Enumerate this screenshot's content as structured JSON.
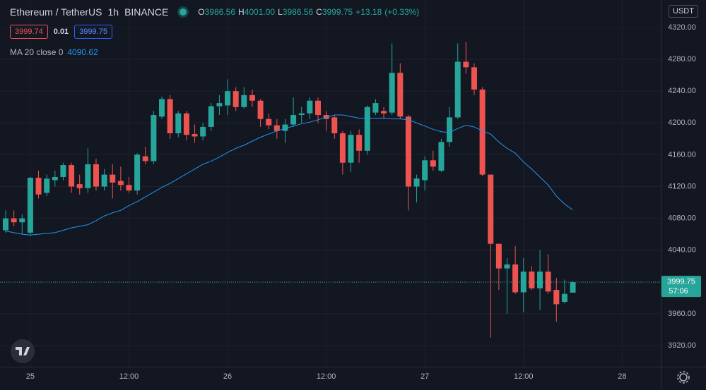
{
  "chart_data": {
    "type": "candlestick",
    "title": "Ethereum / TetherUS",
    "interval": "1h",
    "exchange": "BINANCE",
    "ohlc_legend": {
      "open_label": "O",
      "open": 3986.56,
      "high_label": "H",
      "high": {
        "value": 4001,
        "label": "4001.00"
      },
      "low_label": "L",
      "low": 3986.56,
      "close_label": "C",
      "close": 3999.75,
      "change": {
        "value": 13.18,
        "label": "+13.18"
      },
      "change_pct": {
        "value": 0.33,
        "label": "(+0.33%)"
      }
    },
    "sell": 3999.74,
    "spread": 0.01,
    "buy": 3999.75,
    "currency": "USDT",
    "last_price": 3999.75,
    "countdown": "57:06",
    "up_color": "#26a69a",
    "down_color": "#ef5350",
    "x": [
      -3,
      -2,
      -1,
      0,
      1,
      2,
      3,
      4,
      5,
      6,
      7,
      8,
      9,
      10,
      11,
      12,
      13,
      14,
      15,
      16,
      17,
      18,
      19,
      20,
      21,
      22,
      23,
      24,
      25,
      26,
      27,
      28,
      29,
      30,
      31,
      32,
      33,
      34,
      35,
      36,
      37,
      38,
      39,
      40,
      41,
      42,
      43,
      44,
      45,
      46,
      47,
      48,
      49,
      50,
      51,
      52,
      53,
      54,
      55,
      56,
      57,
      58,
      59,
      60,
      61,
      62,
      63,
      64,
      65,
      66
    ],
    "open": [
      4065,
      4080,
      4075,
      4062,
      4131,
      4112,
      4128,
      4132,
      4147,
      4123,
      4118,
      4148,
      4120,
      4135,
      4127,
      4122,
      4115,
      4158,
      4152,
      4208,
      4230,
      4187,
      4212,
      4186,
      4183,
      4195,
      4221,
      4222,
      4240,
      4220,
      4235,
      4228,
      4205,
      4197,
      4190,
      4198,
      4210,
      4212,
      4228,
      4210,
      4207,
      4187,
      4150,
      4185,
      4165,
      4213,
      4215,
      4213,
      4263,
      4208,
      4120,
      4128,
      4153,
      4140,
      4176,
      4207,
      4277,
      4270,
      4242,
      4135,
      4048,
      4017,
      4022,
      3987,
      4013,
      3992,
      4013,
      3990,
      3975,
      3986.56
    ],
    "high": [
      4090,
      4090,
      4085,
      4132,
      4140,
      4135,
      4140,
      4150,
      4150,
      4135,
      4168,
      4155,
      4142,
      4148,
      4145,
      4132,
      4162,
      4170,
      4215,
      4233,
      4235,
      4215,
      4215,
      4198,
      4200,
      4225,
      4235,
      4255,
      4245,
      4245,
      4242,
      4230,
      4212,
      4205,
      4205,
      4232,
      4220,
      4232,
      4232,
      4215,
      4210,
      4190,
      4190,
      4192,
      4222,
      4230,
      4220,
      4300,
      4275,
      4210,
      4135,
      4158,
      4165,
      4180,
      4220,
      4300,
      4302,
      4275,
      4245,
      4135,
      4048,
      4030,
      4045,
      4030,
      4020,
      4040,
      4035,
      4005,
      4003,
      4001
    ],
    "low": [
      4062,
      4070,
      4060,
      4058,
      4105,
      4108,
      4120,
      4128,
      4112,
      4110,
      4112,
      4115,
      4115,
      4105,
      4115,
      4112,
      4110,
      4148,
      4148,
      4205,
      4180,
      4182,
      4178,
      4175,
      4178,
      4190,
      4210,
      4210,
      4215,
      4218,
      4220,
      4195,
      4192,
      4180,
      4175,
      4195,
      4200,
      4205,
      4200,
      4190,
      4180,
      4135,
      4138,
      4150,
      4160,
      4210,
      4205,
      4210,
      4205,
      4090,
      4100,
      4115,
      4140,
      4138,
      4170,
      4205,
      4262,
      4235,
      4133,
      3930,
      3990,
      3960,
      3985,
      3962,
      3990,
      3965,
      3985,
      3950,
      3973,
      3986.56
    ],
    "close": [
      4080,
      4075,
      4080,
      4131,
      4110,
      4130,
      4132,
      4147,
      4120,
      4118,
      4148,
      4120,
      4135,
      4125,
      4122,
      4115,
      4160,
      4152,
      4210,
      4230,
      4187,
      4212,
      4185,
      4183,
      4195,
      4221,
      4225,
      4240,
      4220,
      4235,
      4228,
      4205,
      4197,
      4190,
      4198,
      4210,
      4212,
      4228,
      4210,
      4205,
      4187,
      4150,
      4185,
      4165,
      4220,
      4225,
      4212,
      4263,
      4208,
      4120,
      4130,
      4153,
      4145,
      4176,
      4207,
      4277,
      4270,
      4242,
      4135,
      4048,
      4017,
      4022,
      3987,
      4013,
      3992,
      4013,
      3988,
      3972,
      3985,
      3999.75
    ],
    "ma": {
      "name": "MA 20 close 0",
      "color": "#2196f3",
      "values": [
        4064,
        4062,
        4060,
        4059,
        4060,
        4061,
        4062,
        4065,
        4068,
        4070,
        4072,
        4077,
        4083,
        4087,
        4090,
        4096,
        4101,
        4107,
        4113,
        4119,
        4124,
        4130,
        4136,
        4142,
        4148,
        4152,
        4157,
        4163,
        4168,
        4172,
        4177,
        4182,
        4186,
        4190,
        4193,
        4196,
        4199,
        4201,
        4204,
        4207,
        4210,
        4210,
        4208,
        4206,
        4206,
        4206,
        4206,
        4205,
        4205,
        4204,
        4200,
        4196,
        4192,
        4189,
        4188,
        4193,
        4197,
        4195,
        4190,
        4186,
        4176,
        4168,
        4162,
        4151,
        4142,
        4132,
        4122,
        4108,
        4098,
        4090.62
      ]
    },
    "xlim": [
      -3.69,
      76.7
    ],
    "xticks": [
      {
        "value": 0,
        "label": "25"
      },
      {
        "value": 12,
        "label": "12:00"
      },
      {
        "value": 24,
        "label": "26"
      },
      {
        "value": 36,
        "label": "12:00"
      },
      {
        "value": 48,
        "label": "27"
      },
      {
        "value": 60,
        "label": "12:00"
      },
      {
        "value": 72,
        "label": "28"
      }
    ],
    "ylim": [
      3893.4,
      4354.6
    ],
    "yticks": [
      {
        "value": 3920,
        "label": "3920.00"
      },
      {
        "value": 3960,
        "label": "3960.00"
      },
      {
        "value": 4000,
        "label": "4000.00"
      },
      {
        "value": 4040,
        "label": "4040.00"
      },
      {
        "value": 4080,
        "label": "4080.00"
      },
      {
        "value": 4120,
        "label": "4120.00"
      },
      {
        "value": 4160,
        "label": "4160.00"
      },
      {
        "value": 4200,
        "label": "4200.00"
      },
      {
        "value": 4240,
        "label": "4240.00"
      },
      {
        "value": 4280,
        "label": "4280.00"
      },
      {
        "value": 4320,
        "label": "4320.00"
      }
    ],
    "grid": true
  }
}
